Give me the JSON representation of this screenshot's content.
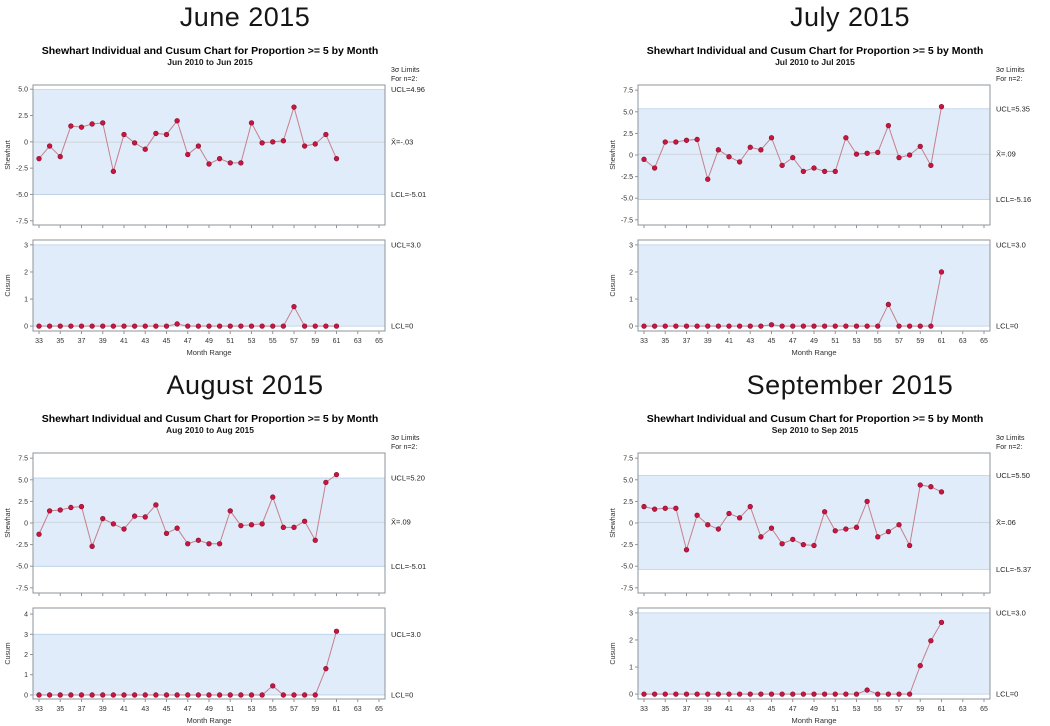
{
  "colors": {
    "band": "#e0ecf9",
    "band_edge": "#b9cfe6",
    "center_line": "#c8cdd4",
    "frame": "#8f949a",
    "line": "#c5808f",
    "marker": "#c81640",
    "marker_edge": "#8e1030",
    "tick_text": "#333333"
  },
  "chart_data": [
    {
      "panel": "June 2015",
      "title": "Shewhart Individual and Cusum Chart for Proportion >= 5 by Month",
      "subtitle": "Jun 2010 to Jun 2015",
      "sigma_note": [
        "3σ Limits",
        "For n=2:"
      ],
      "xlabel": "Month Range",
      "xticks": [
        33,
        35,
        37,
        39,
        41,
        43,
        45,
        47,
        49,
        51,
        53,
        55,
        57,
        59,
        61,
        63,
        65
      ],
      "x": [
        33,
        34,
        35,
        36,
        37,
        38,
        39,
        40,
        41,
        42,
        43,
        44,
        45,
        46,
        47,
        48,
        49,
        50,
        51,
        52,
        53,
        54,
        55,
        56,
        57,
        58,
        59,
        60,
        61
      ],
      "charts": [
        {
          "type": "line",
          "name": "shewhart",
          "ylabel": "Shewhart",
          "values": [
            -1.6,
            -0.4,
            -1.4,
            1.5,
            1.4,
            1.7,
            1.8,
            -2.8,
            0.7,
            -0.1,
            -0.7,
            0.8,
            0.7,
            2.0,
            -1.2,
            -0.4,
            -2.1,
            -1.6,
            -2.0,
            -2.0,
            1.8,
            -0.1,
            0.0,
            0.1,
            3.3,
            -0.4,
            -0.2,
            0.7,
            -1.6
          ],
          "ylim": [
            -7.9,
            5.4
          ],
          "yticks": [
            5,
            2.5,
            0,
            -2.5,
            -5,
            -7.5
          ],
          "ytick_labels": [
            "5.0",
            "2.5",
            "0",
            "-2.5",
            "-5.0",
            "-7.5"
          ],
          "ucl": 4.96,
          "center": -0.03,
          "lcl": -5.01,
          "ucl_label": "UCL=4.96",
          "center_label": "X̄=-.03",
          "lcl_label": "LCL=-5.01"
        },
        {
          "type": "line",
          "name": "cusum",
          "ylabel": "Cusum",
          "values": [
            0,
            0,
            0,
            0,
            0,
            0,
            0,
            0,
            0,
            0,
            0,
            0,
            0,
            0.08,
            0,
            0,
            0,
            0,
            0,
            0,
            0,
            0,
            0,
            0,
            0.72,
            0,
            0,
            0,
            0
          ],
          "ylim": [
            -0.18,
            3.18
          ],
          "yticks": [
            3,
            2,
            1,
            0
          ],
          "ytick_labels": [
            "3",
            "2",
            "1",
            "0"
          ],
          "ucl": 3.0,
          "lcl": 0,
          "ucl_label": "UCL=3.0",
          "lcl_label": "LCL=0"
        }
      ]
    },
    {
      "panel": "July 2015",
      "title": "Shewhart Individual and Cusum Chart for Proportion >= 5 by Month",
      "subtitle": "Jul 2010 to Jul 2015",
      "sigma_note": [
        "3σ Limits",
        "For n=2:"
      ],
      "xlabel": "Month Range",
      "xticks": [
        33,
        35,
        37,
        39,
        41,
        43,
        45,
        47,
        49,
        51,
        53,
        55,
        57,
        59,
        61,
        63,
        65
      ],
      "x": [
        33,
        34,
        35,
        36,
        37,
        38,
        39,
        40,
        41,
        42,
        43,
        44,
        45,
        46,
        47,
        48,
        49,
        50,
        51,
        52,
        53,
        54,
        55,
        56,
        57,
        58,
        59,
        60,
        61
      ],
      "charts": [
        {
          "type": "line",
          "name": "shewhart",
          "ylabel": "Shewhart",
          "values": [
            -0.5,
            -1.5,
            1.5,
            1.5,
            1.7,
            1.8,
            -2.8,
            0.6,
            -0.2,
            -0.8,
            0.9,
            0.6,
            2.0,
            -1.2,
            -0.3,
            -1.9,
            -1.5,
            -1.9,
            -1.9,
            2.0,
            0.1,
            0.2,
            0.3,
            3.4,
            -0.3,
            0.0,
            1.0,
            -1.2,
            5.6
          ],
          "ylim": [
            -8.1,
            8.1
          ],
          "yticks": [
            7.5,
            5,
            2.5,
            0,
            -2.5,
            -5,
            -7.5
          ],
          "ytick_labels": [
            "7.5",
            "5.0",
            "2.5",
            "0",
            "-2.5",
            "-5.0",
            "-7.5"
          ],
          "ucl": 5.35,
          "center": 0.09,
          "lcl": -5.16,
          "ucl_label": "UCL=5.35",
          "center_label": "X̄=.09",
          "lcl_label": "LCL=-5.16"
        },
        {
          "type": "line",
          "name": "cusum",
          "ylabel": "Cusum",
          "values": [
            0,
            0,
            0,
            0,
            0,
            0,
            0,
            0,
            0,
            0,
            0,
            0,
            0.05,
            0,
            0,
            0,
            0,
            0,
            0,
            0,
            0,
            0,
            0,
            0.8,
            0,
            0,
            0,
            0,
            2.0
          ],
          "ylim": [
            -0.18,
            3.18
          ],
          "yticks": [
            3,
            2,
            1,
            0
          ],
          "ytick_labels": [
            "3",
            "2",
            "1",
            "0"
          ],
          "ucl": 3.0,
          "lcl": 0,
          "ucl_label": "UCL=3.0",
          "lcl_label": "LCL=0"
        }
      ]
    },
    {
      "panel": "August 2015",
      "title": "Shewhart Individual and Cusum Chart for Proportion >= 5 by Month",
      "subtitle": "Aug 2010 to Aug 2015",
      "sigma_note": [
        "3σ Limits",
        "For n=2:"
      ],
      "xlabel": "Month Range",
      "xticks": [
        33,
        35,
        37,
        39,
        41,
        43,
        45,
        47,
        49,
        51,
        53,
        55,
        57,
        59,
        61,
        63,
        65
      ],
      "x": [
        33,
        34,
        35,
        36,
        37,
        38,
        39,
        40,
        41,
        42,
        43,
        44,
        45,
        46,
        47,
        48,
        49,
        50,
        51,
        52,
        53,
        54,
        55,
        56,
        57,
        58,
        59,
        60,
        61
      ],
      "charts": [
        {
          "type": "line",
          "name": "shewhart",
          "ylabel": "Shewhart",
          "values": [
            -1.3,
            1.4,
            1.5,
            1.8,
            1.9,
            -2.7,
            0.5,
            -0.1,
            -0.7,
            0.8,
            0.7,
            2.1,
            -1.2,
            -0.6,
            -2.4,
            -2.0,
            -2.4,
            -2.4,
            1.4,
            -0.3,
            -0.2,
            -0.1,
            3.0,
            -0.5,
            -0.5,
            0.2,
            -2.0,
            4.7,
            5.6
          ],
          "ylim": [
            -8.1,
            8.1
          ],
          "yticks": [
            7.5,
            5,
            2.5,
            0,
            -2.5,
            -5,
            -7.5
          ],
          "ytick_labels": [
            "7.5",
            "5.0",
            "2.5",
            "0",
            "-2.5",
            "-5.0",
            "-7.5"
          ],
          "ucl": 5.2,
          "center": 0.09,
          "lcl": -5.01,
          "ucl_label": "UCL=5.20",
          "center_label": "X̄=.09",
          "lcl_label": "LCL=-5.01"
        },
        {
          "type": "line",
          "name": "cusum",
          "ylabel": "Cusum",
          "values": [
            0,
            0,
            0,
            0,
            0,
            0,
            0,
            0,
            0,
            0,
            0,
            0,
            0,
            0,
            0,
            0,
            0,
            0,
            0,
            0,
            0,
            0,
            0.45,
            0,
            0,
            0,
            0,
            1.3,
            3.15
          ],
          "ylim": [
            -0.2,
            4.3
          ],
          "yticks": [
            4,
            3,
            2,
            1,
            0
          ],
          "ytick_labels": [
            "4",
            "3",
            "2",
            "1",
            "0"
          ],
          "ucl": 3.0,
          "lcl": 0,
          "ucl_label": "UCL=3.0",
          "lcl_label": "LCL=0"
        }
      ]
    },
    {
      "panel": "September 2015",
      "title": "Shewhart Individual and Cusum Chart for Proportion >= 5 by Month",
      "subtitle": "Sep 2010 to Sep 2015",
      "sigma_note": [
        "3σ Limits",
        "For n=2:"
      ],
      "xlabel": "Month Range",
      "xticks": [
        33,
        35,
        37,
        39,
        41,
        43,
        45,
        47,
        49,
        51,
        53,
        55,
        57,
        59,
        61,
        63,
        65
      ],
      "x": [
        33,
        34,
        35,
        36,
        37,
        38,
        39,
        40,
        41,
        42,
        43,
        44,
        45,
        46,
        47,
        48,
        49,
        50,
        51,
        52,
        53,
        54,
        55,
        56,
        57,
        58,
        59,
        60,
        61
      ],
      "charts": [
        {
          "type": "line",
          "name": "shewhart",
          "ylabel": "Shewhart",
          "values": [
            1.9,
            1.6,
            1.7,
            1.7,
            -3.1,
            0.9,
            -0.2,
            -0.7,
            1.1,
            0.6,
            1.9,
            -1.6,
            -0.6,
            -2.4,
            -1.9,
            -2.5,
            -2.6,
            1.3,
            -0.9,
            -0.7,
            -0.5,
            2.5,
            -1.6,
            -1.0,
            -0.2,
            -2.6,
            4.4,
            4.2,
            3.6
          ],
          "ylim": [
            -8.1,
            8.1
          ],
          "yticks": [
            7.5,
            5,
            2.5,
            0,
            -2.5,
            -5,
            -7.5
          ],
          "ytick_labels": [
            "7.5",
            "5.0",
            "2.5",
            "0",
            "-2.5",
            "-5.0",
            "-7.5"
          ],
          "ucl": 5.5,
          "center": 0.06,
          "lcl": -5.37,
          "ucl_label": "UCL=5.50",
          "center_label": "X̄=.06",
          "lcl_label": "LCL=-5.37"
        },
        {
          "type": "line",
          "name": "cusum",
          "ylabel": "Cusum",
          "values": [
            0,
            0,
            0,
            0,
            0,
            0,
            0,
            0,
            0,
            0,
            0,
            0,
            0,
            0,
            0,
            0,
            0,
            0,
            0,
            0,
            0,
            0.15,
            0,
            0,
            0,
            0,
            1.05,
            1.97,
            2.65
          ],
          "ylim": [
            -0.18,
            3.18
          ],
          "yticks": [
            3,
            2,
            1,
            0
          ],
          "ytick_labels": [
            "3",
            "2",
            "1",
            "0"
          ],
          "ucl": 3.0,
          "lcl": 0,
          "ucl_label": "UCL=3.0",
          "lcl_label": "LCL=0"
        }
      ]
    }
  ]
}
